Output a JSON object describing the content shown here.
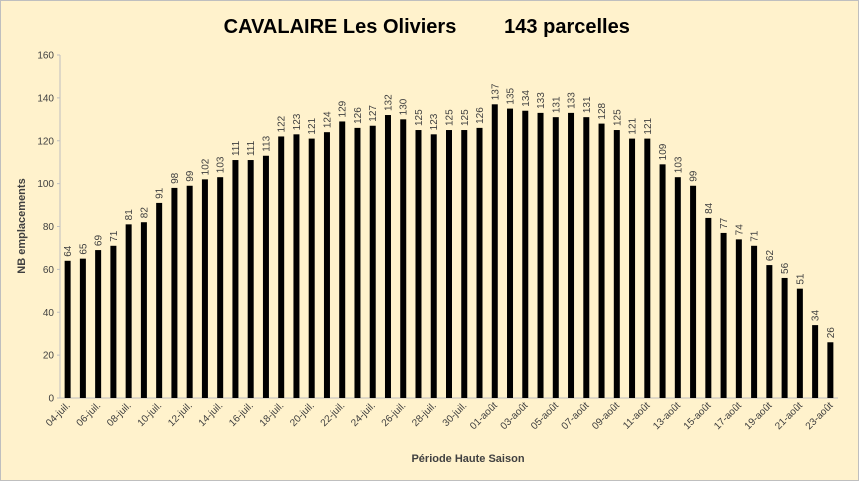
{
  "chart_data": {
    "type": "bar",
    "title": "CAVALAIRE Les Oliviers",
    "subtitle": "143 parcelles",
    "y_label": "NB emplacements",
    "x_label": "Période Haute Saison",
    "categories": [
      "04-juil.",
      null,
      "06-juil.",
      null,
      "08-juil.",
      null,
      "10-juil.",
      null,
      "12-juil.",
      null,
      "14-juil.",
      null,
      "16-juil.",
      null,
      "18-juil.",
      null,
      "20-juil.",
      null,
      "22-juil.",
      null,
      "24-juil.",
      null,
      "26-juil.",
      null,
      "28-juil.",
      null,
      "30-juil.",
      null,
      "01-août",
      null,
      "03-août",
      null,
      "05-août",
      null,
      "07-août",
      null,
      "09-août",
      null,
      "11-août",
      null,
      "13-août",
      null,
      "15-août",
      null,
      "17-août",
      null,
      "19-août",
      null,
      "21-août",
      null,
      "23-août"
    ],
    "values": [
      64,
      65,
      69,
      71,
      81,
      82,
      91,
      98,
      99,
      102,
      103,
      111,
      111,
      113,
      122,
      123,
      121,
      124,
      129,
      126,
      127,
      132,
      130,
      125,
      123,
      125,
      125,
      126,
      137,
      135,
      134,
      133,
      131,
      133,
      131,
      128,
      125,
      121,
      121,
      109,
      103,
      99,
      84,
      77,
      74,
      71,
      62,
      56,
      51,
      34,
      26
    ],
    "color": "#000000",
    "ylim": [
      0,
      160
    ],
    "yticks": [
      0,
      20,
      40,
      60,
      80,
      100,
      120,
      140,
      160
    ],
    "grid": false
  }
}
